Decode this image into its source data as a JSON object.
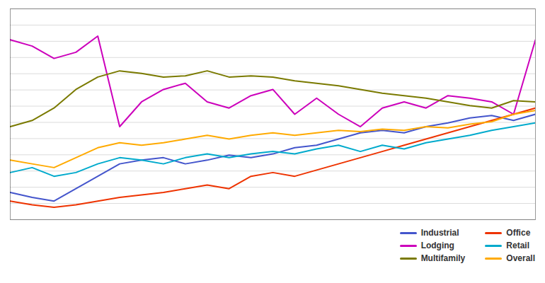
{
  "chart_data": {
    "type": "line",
    "x": [
      0,
      1,
      2,
      3,
      4,
      5,
      6,
      7,
      8,
      9,
      10,
      11,
      12,
      13,
      14,
      15,
      16,
      17,
      18,
      19,
      20,
      21,
      22,
      23,
      24
    ],
    "xlim": [
      0,
      24
    ],
    "ylim": [
      0,
      17
    ],
    "yticks": [
      0,
      1.3076923076923077,
      2.6153846153846154,
      3.923076923076923,
      5.230769230769231,
      6.538461538461538,
      7.846153846153846,
      9.153846153846153,
      10.461538461538462,
      11.76923076923077,
      13.076923076923077,
      14.384615384615385,
      15.692307692307692,
      17
    ],
    "grid": true,
    "tick_labels": false,
    "legend": "lower right",
    "series": [
      {
        "name": "Industrial",
        "color": "#4455cc",
        "values": [
          2.2,
          1.8,
          1.5,
          2.5,
          3.5,
          4.5,
          4.8,
          5.0,
          4.5,
          4.8,
          5.2,
          5.0,
          5.3,
          5.8,
          6.0,
          6.5,
          7.0,
          7.2,
          7.0,
          7.5,
          7.8,
          8.2,
          8.4,
          8.0,
          8.5
        ]
      },
      {
        "name": "Lodging",
        "color": "#cc00bb",
        "values": [
          14.5,
          14.0,
          13.0,
          13.5,
          14.8,
          7.5,
          9.5,
          10.5,
          11.0,
          9.5,
          9.0,
          10.0,
          10.5,
          8.5,
          9.8,
          8.5,
          7.5,
          9.0,
          9.5,
          9.0,
          10.0,
          9.8,
          9.5,
          8.5,
          14.5
        ]
      },
      {
        "name": "Multifamily",
        "color": "#7a7a00",
        "values": [
          7.5,
          8.0,
          9.0,
          10.5,
          11.5,
          12.0,
          11.8,
          11.5,
          11.6,
          12.0,
          11.5,
          11.6,
          11.5,
          11.2,
          11.0,
          10.8,
          10.5,
          10.2,
          10.0,
          9.8,
          9.5,
          9.2,
          9.0,
          9.6,
          9.5
        ]
      },
      {
        "name": "Office",
        "color": "#ee3300",
        "values": [
          1.5,
          1.2,
          1.0,
          1.2,
          1.5,
          1.8,
          2.0,
          2.2,
          2.5,
          2.8,
          2.5,
          3.5,
          3.8,
          3.5,
          4.0,
          4.5,
          5.0,
          5.5,
          6.0,
          6.5,
          7.0,
          7.5,
          8.0,
          8.5,
          9.0
        ]
      },
      {
        "name": "Retail",
        "color": "#00aacc",
        "values": [
          3.8,
          4.2,
          3.5,
          3.8,
          4.5,
          5.0,
          4.8,
          4.5,
          5.0,
          5.3,
          5.0,
          5.3,
          5.5,
          5.3,
          5.7,
          6.0,
          5.5,
          6.0,
          5.7,
          6.2,
          6.5,
          6.8,
          7.2,
          7.5,
          7.8
        ]
      },
      {
        "name": "Overall",
        "color": "#ffaa00",
        "values": [
          4.8,
          4.5,
          4.2,
          5.0,
          5.8,
          6.2,
          6.0,
          6.2,
          6.5,
          6.8,
          6.5,
          6.8,
          7.0,
          6.8,
          7.0,
          7.2,
          7.1,
          7.3,
          7.2,
          7.5,
          7.4,
          7.7,
          7.9,
          8.5,
          8.8
        ]
      }
    ]
  }
}
